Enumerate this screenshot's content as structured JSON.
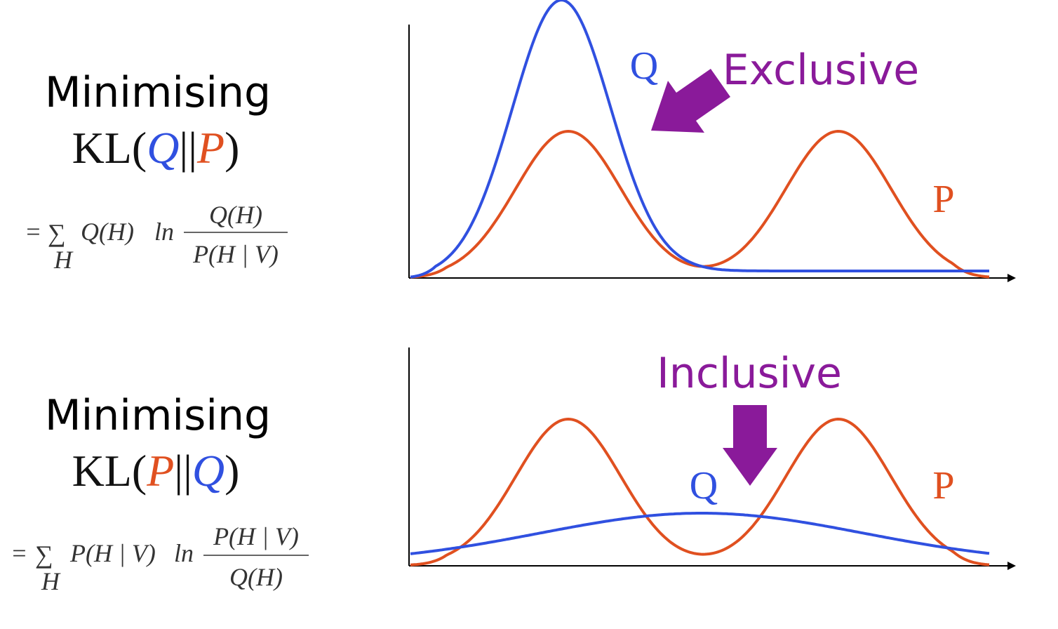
{
  "panels": [
    {
      "heading": "Minimising",
      "kl": {
        "prefix": "KL(",
        "first": "Q",
        "separator": "||",
        "second": "P",
        "suffix": ")"
      },
      "formula": {
        "lhs": "=",
        "sum": "∑",
        "sum_index": "H",
        "term": "Q(H)",
        "log": "ln",
        "numerator": "Q(H)",
        "denominator": "P(H | V)"
      },
      "curve_labels": {
        "q": "Q",
        "p": "P"
      },
      "annotation": "Exclusive"
    },
    {
      "heading": "Minimising",
      "kl": {
        "prefix": "KL(",
        "first": "P",
        "separator": "||",
        "second": "Q",
        "suffix": ")"
      },
      "formula": {
        "lhs": "=",
        "sum": "∑",
        "sum_index": "H",
        "term": "P(H | V)",
        "log": "ln",
        "numerator": "P(H | V)",
        "denominator": "Q(H)"
      },
      "curve_labels": {
        "q": "Q",
        "p": "P"
      },
      "annotation": "Inclusive"
    }
  ]
}
